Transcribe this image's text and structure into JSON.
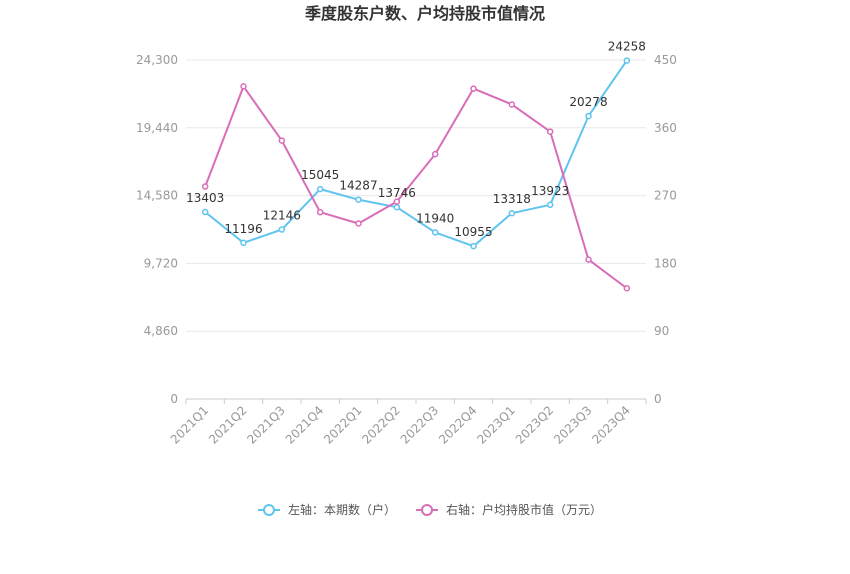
{
  "chart_data": {
    "type": "line",
    "title": "季度股东户数、户均持股市值情况",
    "categories": [
      "2021Q1",
      "2021Q2",
      "2021Q3",
      "2021Q4",
      "2022Q1",
      "2022Q2",
      "2022Q3",
      "2022Q4",
      "2023Q1",
      "2023Q2",
      "2023Q3",
      "2023Q4"
    ],
    "left_axis": {
      "min": 0,
      "max": 24300,
      "ticks": [
        "0",
        "4,860",
        "9,720",
        "14,580",
        "19,440",
        "24,300"
      ]
    },
    "right_axis": {
      "min": 0,
      "max": 450,
      "ticks": [
        "0",
        "90",
        "180",
        "270",
        "360",
        "450"
      ]
    },
    "series": [
      {
        "name": "左轴：本期数（户）",
        "axis": "left",
        "color": "#5ec4f0",
        "values": [
          13403,
          11196,
          12146,
          15045,
          14287,
          13746,
          11940,
          10955,
          13318,
          13923,
          20278,
          24258
        ],
        "labels": [
          "13403",
          "11196",
          "12146",
          "15045",
          "14287",
          "13746",
          "11940",
          "10955",
          "13318",
          "13923",
          "20278",
          "24258"
        ]
      },
      {
        "name": "右轴：户均持股市值（万元）",
        "axis": "right",
        "color": "#d86db8",
        "values": [
          282,
          415,
          343,
          248,
          233,
          262,
          325,
          412,
          391,
          355,
          185,
          147
        ]
      }
    ],
    "grid": true,
    "legend_position": "bottom"
  }
}
